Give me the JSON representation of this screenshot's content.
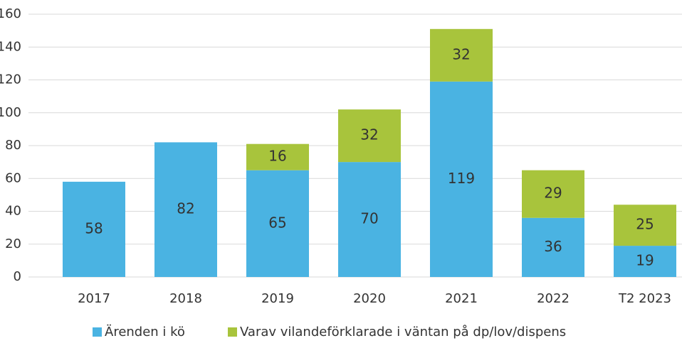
{
  "chart_data": {
    "type": "stacked_bar",
    "categories": [
      "2017",
      "2018",
      "2019",
      "2020",
      "2021",
      "2022",
      "T2 2023"
    ],
    "series": [
      {
        "name": "Ärenden i kö",
        "color": "#4ab3e2",
        "values": [
          58,
          82,
          65,
          70,
          119,
          36,
          19
        ]
      },
      {
        "name": "Varav vilandeförklarade i väntan på dp/lov/dispens",
        "color": "#a8c43c",
        "values": [
          null,
          null,
          16,
          32,
          32,
          29,
          25
        ]
      }
    ],
    "ylim": [
      0,
      160
    ],
    "yticks": [
      0,
      20,
      40,
      60,
      80,
      100,
      120,
      140,
      160
    ],
    "grid": true,
    "legend": "bottom"
  }
}
